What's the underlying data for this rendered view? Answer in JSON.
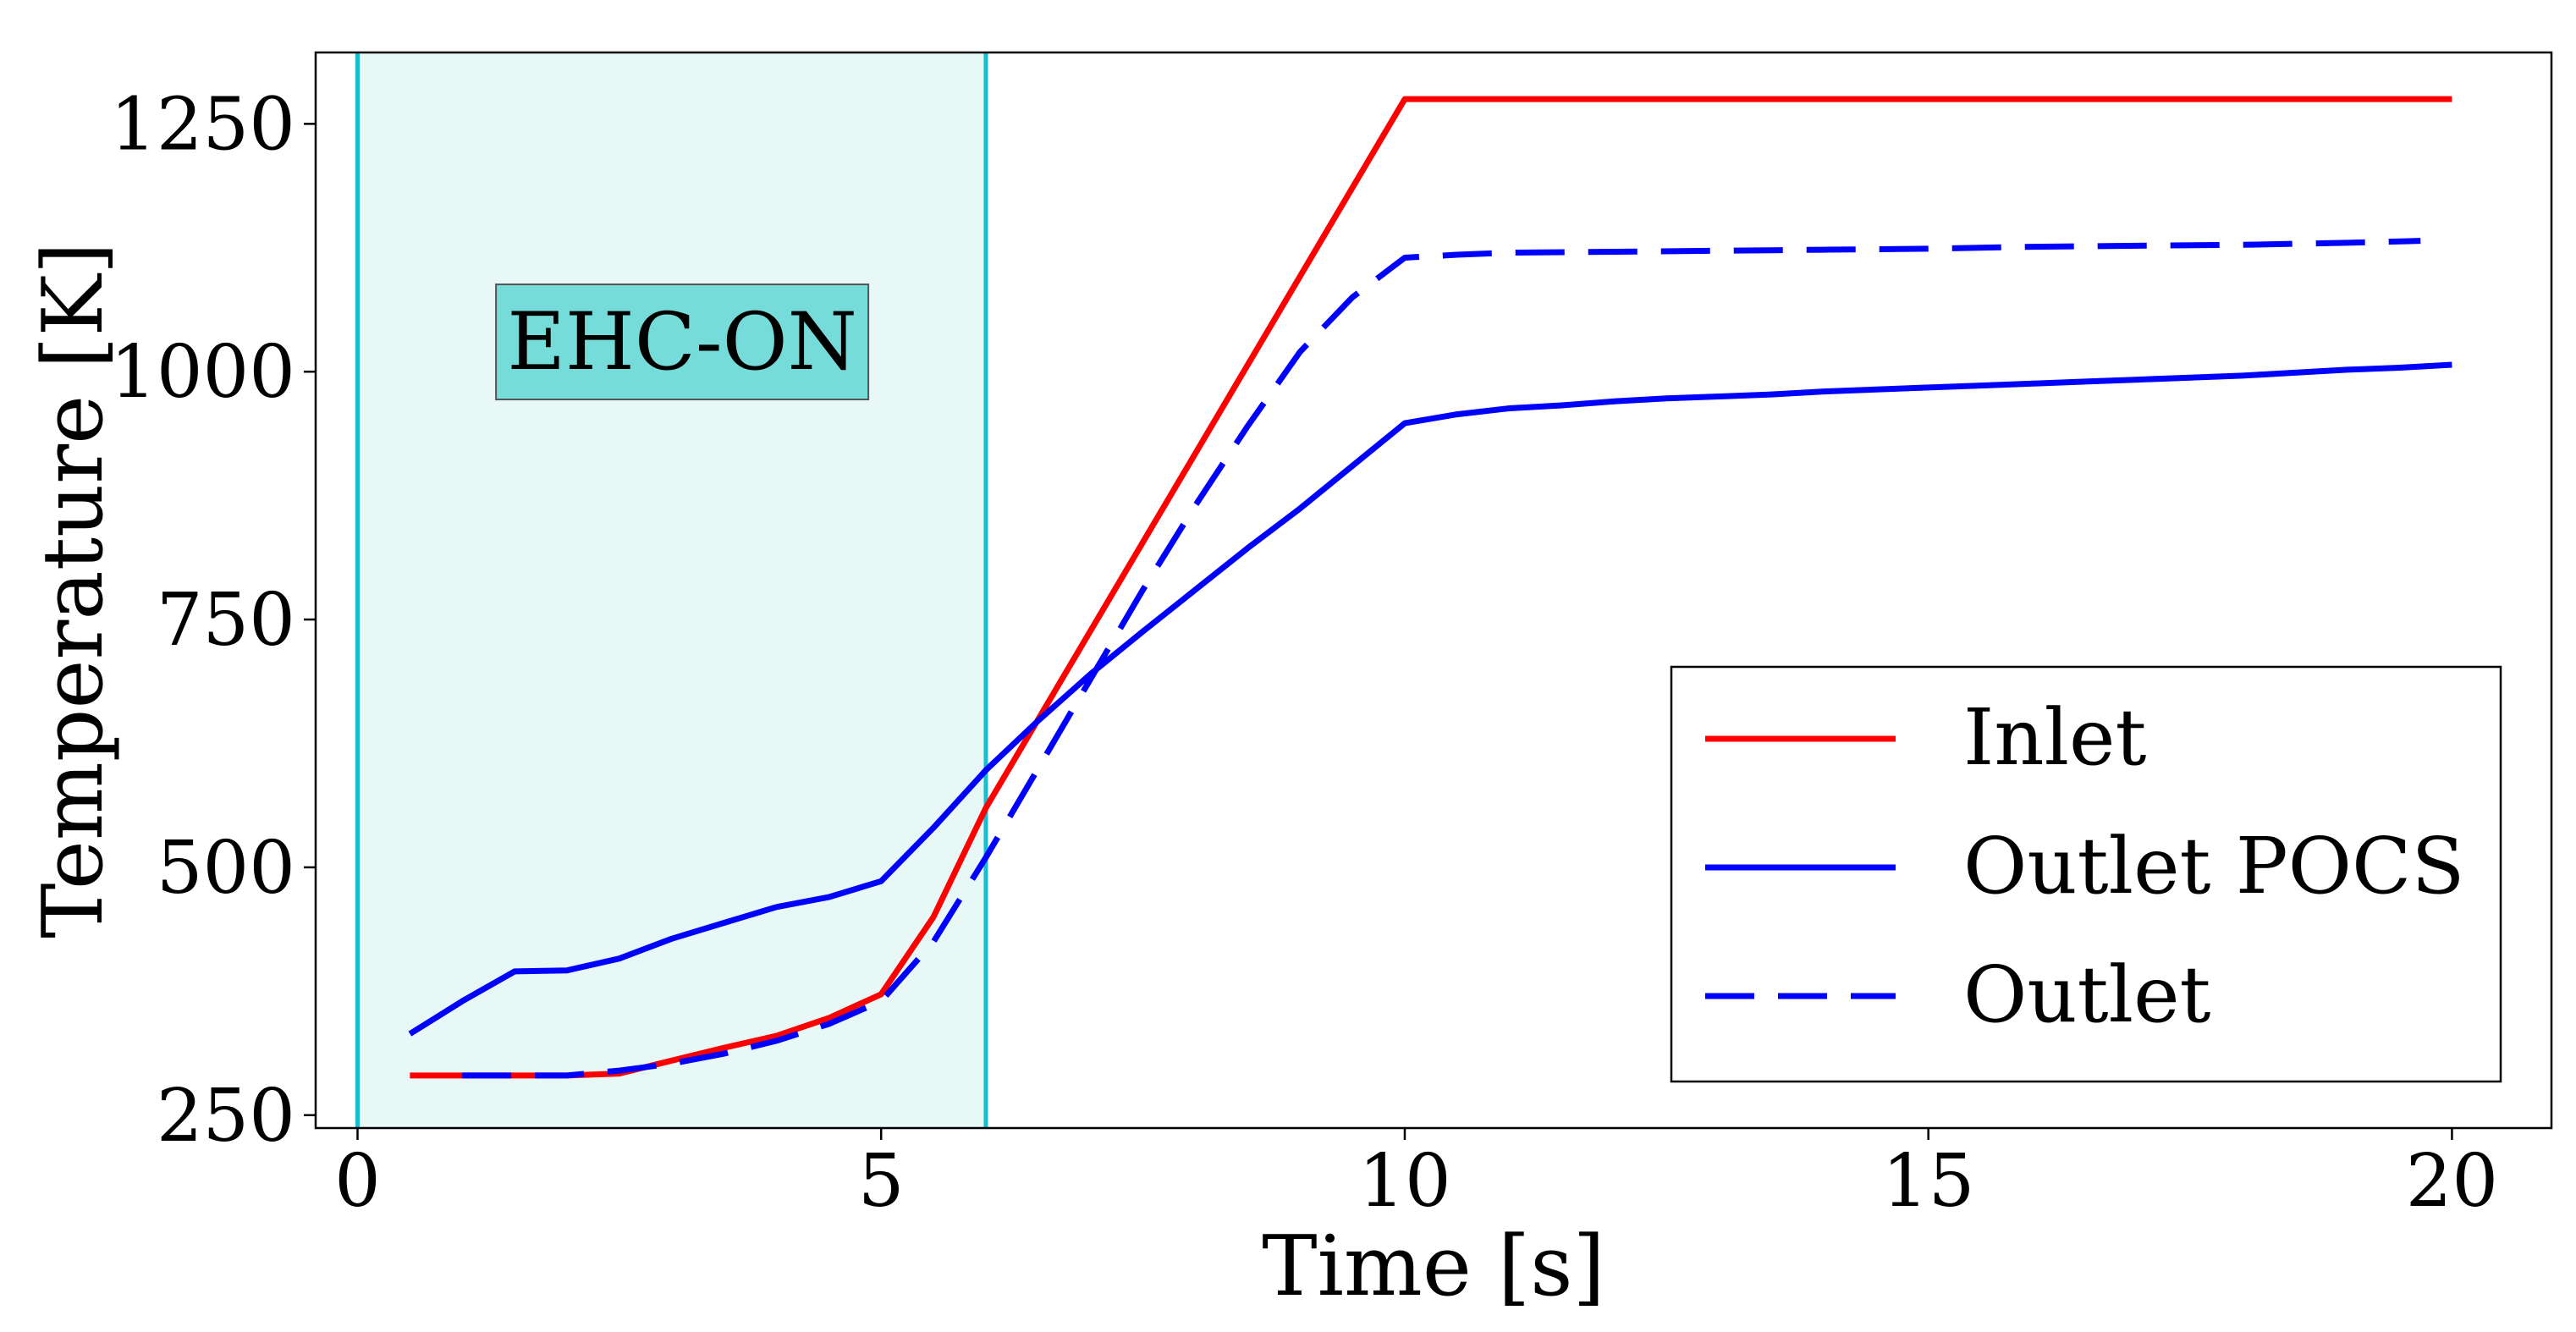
{
  "chart_data": {
    "type": "line",
    "title": "",
    "xlabel": "Time [s]",
    "ylabel": "Temperature [K]",
    "xlim": [
      -0.4,
      20.95
    ],
    "ylim": [
      237,
      1322
    ],
    "xticks": [
      0,
      5,
      10,
      15,
      20
    ],
    "yticks": [
      250,
      500,
      750,
      1000,
      1250
    ],
    "grid": false,
    "legend_position": "lower-right",
    "shaded_region": {
      "x_start": 0,
      "x_end": 6,
      "color": "#e8f8f7",
      "edge_color": "#17becf"
    },
    "annotation": {
      "text": "EHC-ON",
      "x": 3.1,
      "y": 1030,
      "box_color": "#76dcd9"
    },
    "series": [
      {
        "name": "Inlet",
        "color": "#ff0000",
        "style": "solid",
        "x": [
          0.5,
          1,
          1.5,
          2,
          2.5,
          3,
          3.5,
          4,
          4.5,
          5,
          5.5,
          6,
          10,
          20
        ],
        "y": [
          290,
          290,
          290,
          290,
          292,
          305,
          318,
          330,
          348,
          372,
          450,
          560,
          1275,
          1275
        ]
      },
      {
        "name": "Outlet POCS",
        "color": "#0000ff",
        "style": "solid",
        "x": [
          0.5,
          1,
          1.5,
          2,
          2.5,
          3,
          3.5,
          4,
          4.5,
          5,
          5.5,
          6,
          6.5,
          7,
          7.5,
          8,
          8.5,
          9,
          9.5,
          10,
          10.5,
          11,
          11.5,
          12,
          12.5,
          13,
          13.5,
          14,
          14.5,
          15,
          15.5,
          16,
          16.5,
          17,
          17.5,
          18,
          18.5,
          19,
          19.5,
          20
        ],
        "y": [
          332,
          365,
          395,
          396,
          408,
          428,
          444,
          460,
          470,
          486,
          540,
          598,
          648,
          695,
          738,
          780,
          822,
          862,
          905,
          948,
          957,
          963,
          966,
          970,
          973,
          975,
          977,
          980,
          982,
          984,
          986,
          988,
          990,
          992,
          994,
          996,
          999,
          1002,
          1004,
          1007
        ]
      },
      {
        "name": "Outlet",
        "color": "#0000ff",
        "style": "dashed",
        "x": [
          1,
          1.5,
          2,
          2.5,
          3,
          3.5,
          4,
          4.5,
          5,
          5.5,
          6,
          6.5,
          7,
          7.5,
          8,
          8.5,
          9,
          9.5,
          10,
          10.5,
          11,
          12,
          13,
          14,
          15,
          16,
          17,
          18,
          19,
          19.7
        ],
        "y": [
          290,
          290,
          290,
          295,
          302,
          312,
          325,
          342,
          365,
          425,
          510,
          600,
          690,
          780,
          865,
          945,
          1020,
          1075,
          1115,
          1118,
          1120,
          1121,
          1122,
          1123,
          1124,
          1126,
          1127,
          1128,
          1130,
          1132
        ]
      }
    ]
  }
}
